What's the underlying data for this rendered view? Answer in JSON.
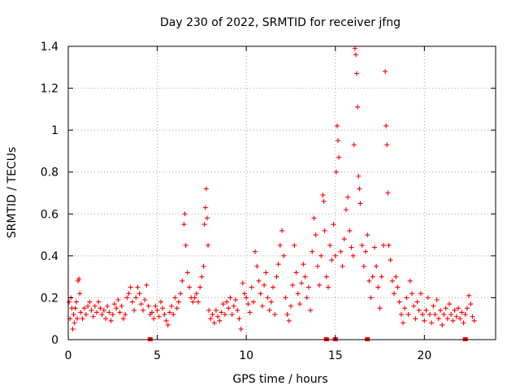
{
  "chart_data": {
    "type": "scatter",
    "title": "Day 230 of 2022, SRMTID for receiver jfng",
    "xlabel": "GPS time / hours",
    "ylabel": "SRMTID / TECUs",
    "xlim": [
      0,
      24
    ],
    "ylim": [
      0,
      1.4
    ],
    "xticks": [
      0,
      5,
      10,
      15,
      20
    ],
    "yticks": [
      0,
      0.2,
      0.4,
      0.6,
      0.8,
      1,
      1.2,
      1.4
    ],
    "xtick_labels": [
      "0",
      "5",
      "10",
      "15",
      "20"
    ],
    "ytick_labels": [
      "0",
      "0.2",
      "0.4",
      "0.6",
      "0.8",
      "1",
      "1.2",
      "1.4"
    ],
    "grid": true,
    "marker": "+",
    "color": "#ff0000",
    "baseline_markers_x": [
      4.6,
      14.5,
      15.0,
      16.8,
      22.3
    ],
    "series": [
      {
        "name": "SRMTID",
        "points": [
          [
            0.05,
            0.18
          ],
          [
            0.1,
            0.1
          ],
          [
            0.15,
            0.2
          ],
          [
            0.2,
            0.15
          ],
          [
            0.25,
            0.05
          ],
          [
            0.3,
            0.12
          ],
          [
            0.35,
            0.08
          ],
          [
            0.4,
            0.15
          ],
          [
            0.45,
            0.18
          ],
          [
            0.5,
            0.1
          ],
          [
            0.55,
            0.28
          ],
          [
            0.6,
            0.29
          ],
          [
            0.65,
            0.22
          ],
          [
            0.7,
            0.13
          ],
          [
            0.8,
            0.1
          ],
          [
            0.9,
            0.15
          ],
          [
            1.0,
            0.12
          ],
          [
            1.1,
            0.16
          ],
          [
            1.2,
            0.18
          ],
          [
            1.3,
            0.14
          ],
          [
            1.4,
            0.11
          ],
          [
            1.5,
            0.16
          ],
          [
            1.6,
            0.13
          ],
          [
            1.7,
            0.18
          ],
          [
            1.8,
            0.15
          ],
          [
            1.9,
            0.12
          ],
          [
            2.0,
            0.14
          ],
          [
            2.1,
            0.1
          ],
          [
            2.2,
            0.16
          ],
          [
            2.3,
            0.13
          ],
          [
            2.4,
            0.09
          ],
          [
            2.5,
            0.12
          ],
          [
            2.6,
            0.17
          ],
          [
            2.7,
            0.15
          ],
          [
            2.8,
            0.19
          ],
          [
            2.9,
            0.13
          ],
          [
            3.0,
            0.16
          ],
          [
            3.1,
            0.1
          ],
          [
            3.2,
            0.12
          ],
          [
            3.3,
            0.2
          ],
          [
            3.4,
            0.22
          ],
          [
            3.5,
            0.25
          ],
          [
            3.6,
            0.18
          ],
          [
            3.7,
            0.14
          ],
          [
            3.8,
            0.2
          ],
          [
            3.9,
            0.25
          ],
          [
            4.0,
            0.22
          ],
          [
            4.1,
            0.17
          ],
          [
            4.2,
            0.14
          ],
          [
            4.3,
            0.19
          ],
          [
            4.4,
            0.26
          ],
          [
            4.5,
            0.16
          ],
          [
            4.6,
            0.12
          ],
          [
            4.7,
            0.13
          ],
          [
            4.8,
            0.1
          ],
          [
            4.9,
            0.16
          ],
          [
            5.0,
            0.14
          ],
          [
            5.1,
            0.11
          ],
          [
            5.2,
            0.18
          ],
          [
            5.3,
            0.15
          ],
          [
            5.4,
            0.12
          ],
          [
            5.5,
            0.09
          ],
          [
            5.6,
            0.07
          ],
          [
            5.7,
            0.13
          ],
          [
            5.8,
            0.16
          ],
          [
            5.9,
            0.12
          ],
          [
            6.0,
            0.2
          ],
          [
            6.1,
            0.15
          ],
          [
            6.2,
            0.18
          ],
          [
            6.3,
            0.22
          ],
          [
            6.4,
            0.28
          ],
          [
            6.5,
            0.55
          ],
          [
            6.55,
            0.6
          ],
          [
            6.6,
            0.45
          ],
          [
            6.7,
            0.32
          ],
          [
            6.8,
            0.25
          ],
          [
            6.9,
            0.2
          ],
          [
            7.0,
            0.18
          ],
          [
            7.1,
            0.2
          ],
          [
            7.2,
            0.22
          ],
          [
            7.3,
            0.18
          ],
          [
            7.4,
            0.25
          ],
          [
            7.5,
            0.3
          ],
          [
            7.6,
            0.35
          ],
          [
            7.65,
            0.55
          ],
          [
            7.7,
            0.63
          ],
          [
            7.75,
            0.72
          ],
          [
            7.8,
            0.58
          ],
          [
            7.85,
            0.45
          ],
          [
            7.9,
            0.14
          ],
          [
            8.0,
            0.1
          ],
          [
            8.1,
            0.12
          ],
          [
            8.2,
            0.08
          ],
          [
            8.3,
            0.14
          ],
          [
            8.4,
            0.11
          ],
          [
            8.5,
            0.09
          ],
          [
            8.6,
            0.13
          ],
          [
            8.7,
            0.17
          ],
          [
            8.8,
            0.12
          ],
          [
            8.9,
            0.18
          ],
          [
            9.0,
            0.15
          ],
          [
            9.1,
            0.2
          ],
          [
            9.2,
            0.12
          ],
          [
            9.3,
            0.16
          ],
          [
            9.4,
            0.19
          ],
          [
            9.5,
            0.14
          ],
          [
            9.6,
            0.1
          ],
          [
            9.7,
            0.05
          ],
          [
            9.8,
            0.27
          ],
          [
            9.9,
            0.22
          ],
          [
            10.0,
            0.2
          ],
          [
            10.1,
            0.17
          ],
          [
            10.2,
            0.13
          ],
          [
            10.3,
            0.25
          ],
          [
            10.4,
            0.18
          ],
          [
            10.5,
            0.42
          ],
          [
            10.6,
            0.35
          ],
          [
            10.7,
            0.28
          ],
          [
            10.8,
            0.22
          ],
          [
            10.9,
            0.16
          ],
          [
            11.0,
            0.26
          ],
          [
            11.1,
            0.32
          ],
          [
            11.2,
            0.2
          ],
          [
            11.3,
            0.14
          ],
          [
            11.4,
            0.18
          ],
          [
            11.5,
            0.25
          ],
          [
            11.6,
            0.12
          ],
          [
            11.7,
            0.3
          ],
          [
            11.8,
            0.36
          ],
          [
            11.9,
            0.45
          ],
          [
            12.0,
            0.52
          ],
          [
            12.1,
            0.4
          ],
          [
            12.2,
            0.2
          ],
          [
            12.3,
            0.12
          ],
          [
            12.4,
            0.09
          ],
          [
            12.5,
            0.16
          ],
          [
            12.6,
            0.26
          ],
          [
            12.7,
            0.45
          ],
          [
            12.8,
            0.32
          ],
          [
            12.9,
            0.22
          ],
          [
            13.0,
            0.17
          ],
          [
            13.1,
            0.27
          ],
          [
            13.2,
            0.36
          ],
          [
            13.3,
            0.3
          ],
          [
            13.4,
            0.2
          ],
          [
            13.5,
            0.25
          ],
          [
            13.6,
            0.14
          ],
          [
            13.7,
            0.42
          ],
          [
            13.8,
            0.58
          ],
          [
            13.9,
            0.5
          ],
          [
            14.0,
            0.35
          ],
          [
            14.1,
            0.26
          ],
          [
            14.2,
            0.4
          ],
          [
            14.3,
            0.69
          ],
          [
            14.35,
            0.66
          ],
          [
            14.4,
            0.52
          ],
          [
            14.5,
            0.3
          ],
          [
            14.6,
            0.25
          ],
          [
            14.7,
            0.45
          ],
          [
            14.8,
            0.38
          ],
          [
            14.9,
            0.55
          ],
          [
            15.0,
            0.4
          ],
          [
            15.05,
            0.8
          ],
          [
            15.1,
            1.02
          ],
          [
            15.15,
            0.95
          ],
          [
            15.2,
            0.87
          ],
          [
            15.3,
            0.42
          ],
          [
            15.4,
            0.35
          ],
          [
            15.5,
            0.48
          ],
          [
            15.6,
            0.62
          ],
          [
            15.7,
            0.68
          ],
          [
            15.8,
            0.52
          ],
          [
            15.9,
            0.44
          ],
          [
            16.0,
            0.4
          ],
          [
            16.05,
            0.93
          ],
          [
            16.1,
            1.39
          ],
          [
            16.15,
            1.36
          ],
          [
            16.2,
            1.27
          ],
          [
            16.25,
            1.11
          ],
          [
            16.3,
            0.78
          ],
          [
            16.35,
            0.72
          ],
          [
            16.4,
            0.65
          ],
          [
            16.5,
            0.45
          ],
          [
            16.6,
            0.35
          ],
          [
            16.7,
            0.42
          ],
          [
            16.8,
            0.5
          ],
          [
            16.9,
            0.28
          ],
          [
            17.0,
            0.2
          ],
          [
            17.1,
            0.3
          ],
          [
            17.2,
            0.44
          ],
          [
            17.3,
            0.35
          ],
          [
            17.4,
            0.25
          ],
          [
            17.5,
            0.15
          ],
          [
            17.6,
            0.3
          ],
          [
            17.7,
            0.45
          ],
          [
            17.8,
            1.28
          ],
          [
            17.85,
            1.02
          ],
          [
            17.9,
            0.93
          ],
          [
            17.95,
            0.7
          ],
          [
            18.0,
            0.45
          ],
          [
            18.1,
            0.38
          ],
          [
            18.2,
            0.28
          ],
          [
            18.3,
            0.22
          ],
          [
            18.4,
            0.3
          ],
          [
            18.5,
            0.25
          ],
          [
            18.6,
            0.18
          ],
          [
            18.7,
            0.12
          ],
          [
            18.8,
            0.08
          ],
          [
            18.9,
            0.15
          ],
          [
            19.0,
            0.2
          ],
          [
            19.1,
            0.12
          ],
          [
            19.2,
            0.28
          ],
          [
            19.3,
            0.22
          ],
          [
            19.4,
            0.16
          ],
          [
            19.5,
            0.1
          ],
          [
            19.6,
            0.18
          ],
          [
            19.7,
            0.14
          ],
          [
            19.8,
            0.22
          ],
          [
            19.9,
            0.12
          ],
          [
            20.0,
            0.09
          ],
          [
            20.1,
            0.14
          ],
          [
            20.2,
            0.2
          ],
          [
            20.3,
            0.12
          ],
          [
            20.4,
            0.08
          ],
          [
            20.5,
            0.16
          ],
          [
            20.6,
            0.12
          ],
          [
            20.7,
            0.19
          ],
          [
            20.8,
            0.1
          ],
          [
            20.9,
            0.14
          ],
          [
            21.0,
            0.07
          ],
          [
            21.1,
            0.12
          ],
          [
            21.2,
            0.15
          ],
          [
            21.3,
            0.1
          ],
          [
            21.4,
            0.17
          ],
          [
            21.5,
            0.12
          ],
          [
            21.6,
            0.09
          ],
          [
            21.7,
            0.14
          ],
          [
            21.8,
            0.11
          ],
          [
            21.9,
            0.15
          ],
          [
            22.0,
            0.1
          ],
          [
            22.1,
            0.13
          ],
          [
            22.2,
            0.08
          ],
          [
            22.3,
            0.12
          ],
          [
            22.4,
            0.15
          ],
          [
            22.5,
            0.21
          ],
          [
            22.6,
            0.17
          ],
          [
            22.7,
            0.11
          ],
          [
            22.8,
            0.09
          ]
        ]
      }
    ]
  }
}
